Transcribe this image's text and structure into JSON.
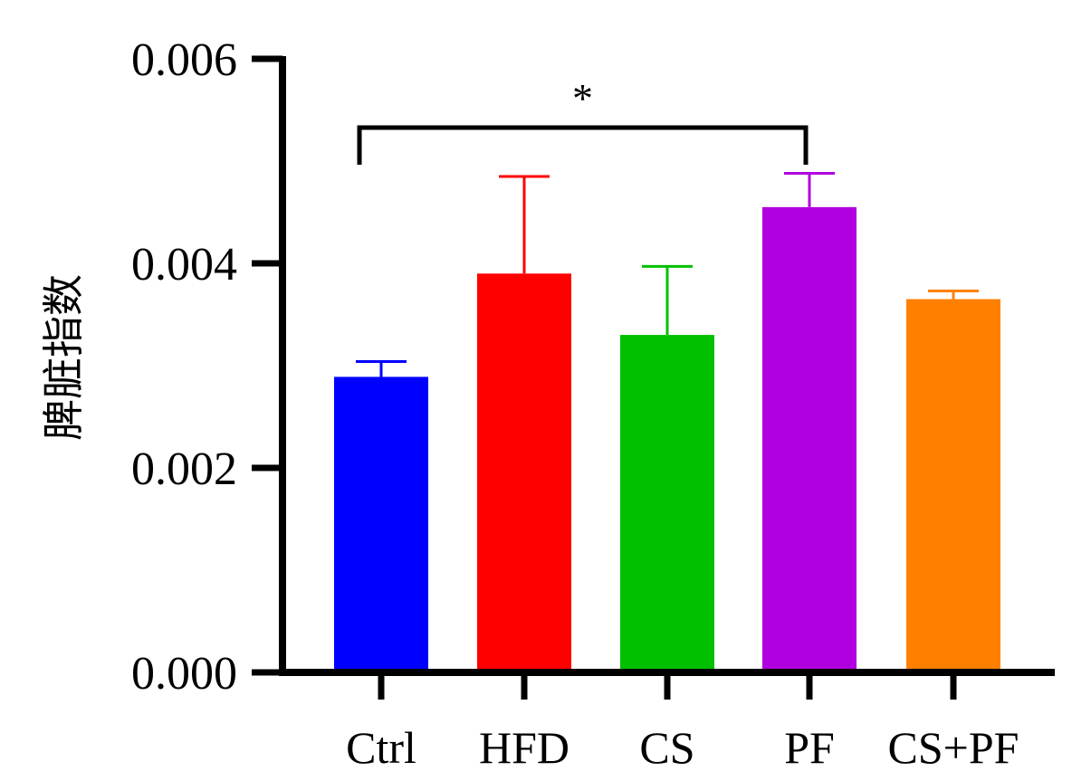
{
  "chart_data": {
    "type": "bar",
    "title": "",
    "xlabel": "",
    "ylabel": "脾脏指数",
    "categories": [
      "Ctrl",
      "HFD",
      "CS",
      "PF",
      "CS+PF"
    ],
    "values": [
      0.00289,
      0.0039,
      0.0033,
      0.00455,
      0.00365
    ],
    "errors": [
      0.00015,
      0.00095,
      0.00067,
      0.00033,
      8e-05
    ],
    "colors": [
      "#0000ff",
      "#ff0000",
      "#00c000",
      "#b000e0",
      "#ff8000"
    ],
    "ylim": [
      0,
      0.006
    ],
    "yticks": [
      "0.000",
      "0.002",
      "0.004",
      "0.006"
    ],
    "grid": false,
    "legend": "none",
    "annotations": [
      {
        "text": "*",
        "from": "Ctrl",
        "to": "PF"
      }
    ]
  }
}
